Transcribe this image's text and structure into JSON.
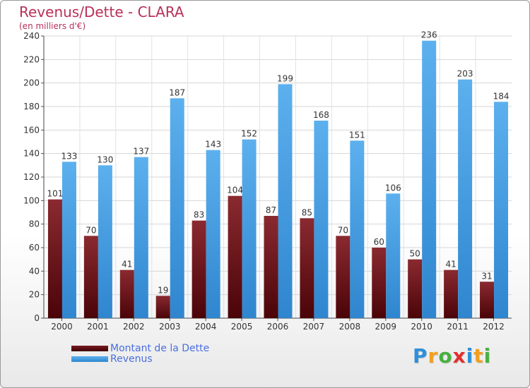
{
  "title": "Revenus/Dette - CLARA",
  "subtitle": "(en milliers d'€)",
  "logo": {
    "letters": [
      "P",
      "r",
      "o",
      "x",
      "i",
      "t",
      "i"
    ],
    "colors": [
      "#2f8fd8",
      "#f0a020",
      "#48b040",
      "#e03030",
      "#2f8fd8",
      "#f0a020",
      "#48b040"
    ]
  },
  "chart_data": {
    "type": "bar",
    "categories": [
      "2000",
      "2001",
      "2002",
      "2003",
      "2004",
      "2005",
      "2006",
      "2007",
      "2008",
      "2009",
      "2010",
      "2011",
      "2012"
    ],
    "series": [
      {
        "name": "Montant de la Dette",
        "color": "#6b1016",
        "values": [
          101,
          70,
          41,
          19,
          83,
          104,
          87,
          85,
          70,
          60,
          50,
          41,
          31
        ]
      },
      {
        "name": "Revenus",
        "color": "#4aa3e6",
        "values": [
          133,
          130,
          137,
          187,
          143,
          152,
          199,
          168,
          151,
          106,
          236,
          203,
          184
        ]
      }
    ],
    "ylim": [
      0,
      240
    ],
    "yticks": [
      0,
      20,
      40,
      60,
      80,
      100,
      120,
      140,
      160,
      180,
      200,
      220,
      240
    ],
    "grid": true,
    "legend": "bottom-left"
  }
}
